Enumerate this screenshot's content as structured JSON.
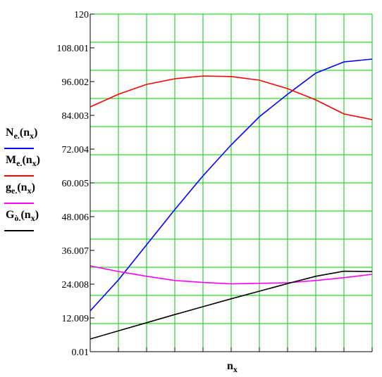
{
  "chart_data": {
    "type": "line",
    "x_label_main": "n",
    "x_label_sub": "x",
    "ylim": [
      0.01,
      120
    ],
    "yticks": [
      "120",
      "108.001",
      "96.002",
      "84.003",
      "72.004",
      "60.005",
      "48.006",
      "36.007",
      "24.008",
      "12.009",
      "0.01"
    ],
    "x_grid_divisions": 10,
    "y_grid_divisions": 12,
    "grid": true,
    "grid_color": "#00cc00",
    "x": [
      0,
      1,
      2,
      3,
      4,
      5,
      6,
      7,
      8,
      9,
      10
    ],
    "series": [
      {
        "label_main": "N",
        "label_sub": "e.",
        "arg_main": "n",
        "arg_sub": "x",
        "color": "#0000ff",
        "values": [
          14.5,
          25.5,
          38.0,
          50.5,
          62.5,
          73.5,
          83.5,
          91.5,
          99.0,
          103.0,
          104.0
        ]
      },
      {
        "label_main": "M",
        "label_sub": "e.",
        "arg_main": "n",
        "arg_sub": "x",
        "color": "#ff0000",
        "values": [
          87.0,
          91.5,
          95.0,
          97.0,
          98.0,
          97.8,
          96.5,
          93.5,
          89.5,
          84.5,
          82.5
        ]
      },
      {
        "label_main": "g",
        "label_sub": "e.",
        "arg_main": "n",
        "arg_sub": "x",
        "color": "#ff00ff",
        "values": [
          30.5,
          28.5,
          26.8,
          25.3,
          24.6,
          24.1,
          24.3,
          24.5,
          25.3,
          26.3,
          27.5
        ]
      },
      {
        "label_main": "G",
        "label_sub": "ò.",
        "arg_main": "n",
        "arg_sub": "x",
        "color": "#000000",
        "values": [
          4.5,
          7.4,
          10.3,
          13.2,
          16.0,
          18.8,
          21.5,
          24.2,
          26.8,
          28.6,
          28.5
        ]
      }
    ]
  }
}
